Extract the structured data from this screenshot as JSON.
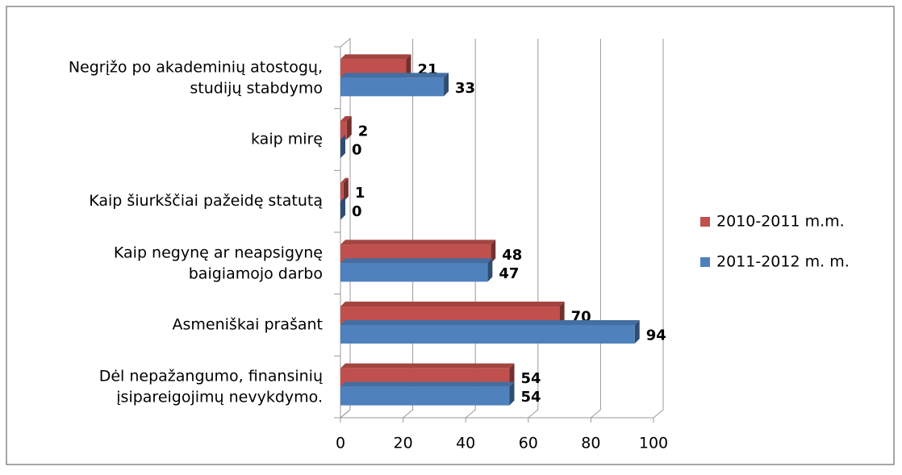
{
  "chart_data": {
    "type": "bar3d-horizontal",
    "categories": [
      "Negrįžo po akademinių atostogų,\nstudijų stabdymo",
      "kaip mirę",
      "Kaip šiurkščiai pažeidę statutą",
      "Kaip negynę ar neapsigynę\nbaigiamojo darbo",
      "Asmeniškai prašant",
      "Dėl nepažangumo, finansinių\nįsipareigojimų nevykdymo."
    ],
    "series": [
      {
        "name": "2010-2011 m.m.",
        "color": "#c0504d",
        "values": [
          21,
          2,
          1,
          48,
          70,
          54
        ]
      },
      {
        "name": "2011-2012 m. m.",
        "color": "#4f81bd",
        "values": [
          33,
          0,
          0,
          47,
          94,
          54
        ]
      }
    ],
    "xlim": [
      0,
      100
    ],
    "xticks": [
      0,
      20,
      40,
      60,
      80,
      100
    ],
    "grid": true,
    "legend": "right"
  }
}
